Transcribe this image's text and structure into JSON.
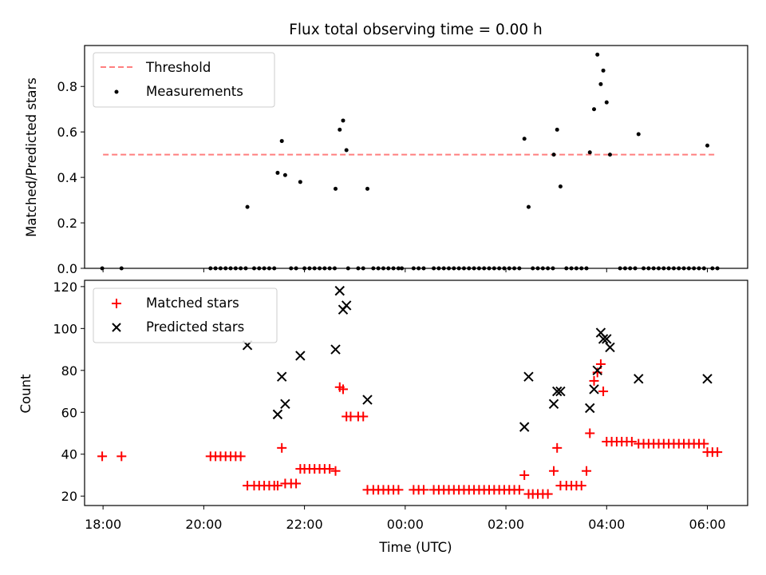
{
  "title": "Flux total observing time = 0.00 h",
  "xlabel": "Time (UTC)",
  "colors": {
    "threshold": "#ff7f7f",
    "measurements": "#000000",
    "matched": "#ff0000",
    "predicted": "#000000"
  },
  "chart_data": [
    {
      "type": "scatter",
      "ylabel": "Matched/Predicted stars",
      "xlim": [
        "17:38",
        "06:48"
      ],
      "ylim": [
        0,
        0.98
      ],
      "yticks": [
        "0.0",
        "0.2",
        "0.4",
        "0.6",
        "0.8"
      ],
      "legend_position": "upper-left",
      "threshold": {
        "name": "Threshold",
        "value": 0.5,
        "x_range": [
          "18:00",
          "06:12"
        ]
      },
      "measurements": {
        "name": "Measurements",
        "points": [
          [
            "17:59",
            0.0
          ],
          [
            "18:22",
            0.0
          ],
          [
            "20:08",
            0.0
          ],
          [
            "20:14",
            0.0
          ],
          [
            "20:20",
            0.0
          ],
          [
            "20:26",
            0.0
          ],
          [
            "20:32",
            0.0
          ],
          [
            "20:38",
            0.0
          ],
          [
            "20:44",
            0.0
          ],
          [
            "20:50",
            0.0
          ],
          [
            "20:52",
            0.27
          ],
          [
            "21:00",
            0.0
          ],
          [
            "21:06",
            0.0
          ],
          [
            "21:12",
            0.0
          ],
          [
            "21:18",
            0.0
          ],
          [
            "21:24",
            0.0
          ],
          [
            "21:28",
            0.42
          ],
          [
            "21:33",
            0.56
          ],
          [
            "21:37",
            0.41
          ],
          [
            "21:44",
            0.0
          ],
          [
            "21:50",
            0.0
          ],
          [
            "21:55",
            0.38
          ],
          [
            "22:00",
            0.0
          ],
          [
            "22:06",
            0.0
          ],
          [
            "22:12",
            0.0
          ],
          [
            "22:18",
            0.0
          ],
          [
            "22:24",
            0.0
          ],
          [
            "22:30",
            0.0
          ],
          [
            "22:36",
            0.0
          ],
          [
            "22:37",
            0.35
          ],
          [
            "22:42",
            0.61
          ],
          [
            "22:46",
            0.65
          ],
          [
            "22:50",
            0.52
          ],
          [
            "22:52",
            0.0
          ],
          [
            "23:04",
            0.0
          ],
          [
            "23:10",
            0.0
          ],
          [
            "23:15",
            0.35
          ],
          [
            "23:22",
            0.0
          ],
          [
            "23:28",
            0.0
          ],
          [
            "23:34",
            0.0
          ],
          [
            "23:40",
            0.0
          ],
          [
            "23:46",
            0.0
          ],
          [
            "23:52",
            0.0
          ],
          [
            "23:56",
            0.0
          ],
          [
            "00:10",
            0.0
          ],
          [
            "00:16",
            0.0
          ],
          [
            "00:22",
            0.0
          ],
          [
            "00:34",
            0.0
          ],
          [
            "00:40",
            0.0
          ],
          [
            "00:46",
            0.0
          ],
          [
            "00:52",
            0.0
          ],
          [
            "00:58",
            0.0
          ],
          [
            "01:04",
            0.0
          ],
          [
            "01:10",
            0.0
          ],
          [
            "01:16",
            0.0
          ],
          [
            "01:22",
            0.0
          ],
          [
            "01:28",
            0.0
          ],
          [
            "01:34",
            0.0
          ],
          [
            "01:40",
            0.0
          ],
          [
            "01:46",
            0.0
          ],
          [
            "01:52",
            0.0
          ],
          [
            "01:58",
            0.0
          ],
          [
            "02:04",
            0.0
          ],
          [
            "02:10",
            0.0
          ],
          [
            "02:16",
            0.0
          ],
          [
            "02:22",
            0.57
          ],
          [
            "02:27",
            0.27
          ],
          [
            "02:32",
            0.0
          ],
          [
            "02:38",
            0.0
          ],
          [
            "02:44",
            0.0
          ],
          [
            "02:50",
            0.0
          ],
          [
            "02:56",
            0.0
          ],
          [
            "02:57",
            0.5
          ],
          [
            "03:01",
            0.61
          ],
          [
            "03:05",
            0.36
          ],
          [
            "03:12",
            0.0
          ],
          [
            "03:18",
            0.0
          ],
          [
            "03:24",
            0.0
          ],
          [
            "03:30",
            0.0
          ],
          [
            "03:36",
            0.0
          ],
          [
            "03:40",
            0.51
          ],
          [
            "03:45",
            0.7
          ],
          [
            "03:49",
            0.94
          ],
          [
            "03:53",
            0.81
          ],
          [
            "03:56",
            0.87
          ],
          [
            "04:00",
            0.73
          ],
          [
            "04:04",
            0.5
          ],
          [
            "04:16",
            0.0
          ],
          [
            "04:22",
            0.0
          ],
          [
            "04:28",
            0.0
          ],
          [
            "04:34",
            0.0
          ],
          [
            "04:38",
            0.59
          ],
          [
            "04:44",
            0.0
          ],
          [
            "04:50",
            0.0
          ],
          [
            "04:56",
            0.0
          ],
          [
            "05:02",
            0.0
          ],
          [
            "05:08",
            0.0
          ],
          [
            "05:14",
            0.0
          ],
          [
            "05:20",
            0.0
          ],
          [
            "05:26",
            0.0
          ],
          [
            "05:32",
            0.0
          ],
          [
            "05:38",
            0.0
          ],
          [
            "05:44",
            0.0
          ],
          [
            "05:50",
            0.0
          ],
          [
            "05:56",
            0.0
          ],
          [
            "06:00",
            0.54
          ],
          [
            "06:06",
            0.0
          ],
          [
            "06:12",
            0.0
          ]
        ]
      }
    },
    {
      "type": "scatter",
      "ylabel": "Count",
      "xlabel": "Time (UTC)",
      "xlim": [
        "17:38",
        "06:48"
      ],
      "ylim": [
        15.5,
        123
      ],
      "yticks": [
        "20",
        "40",
        "60",
        "80",
        "100",
        "120"
      ],
      "xticks": [
        "18:00",
        "20:00",
        "22:00",
        "00:00",
        "02:00",
        "04:00",
        "06:00"
      ],
      "legend_position": "upper-left",
      "series": [
        {
          "name": "Matched stars",
          "marker": "+",
          "points": [
            [
              "17:59",
              39
            ],
            [
              "18:22",
              39
            ],
            [
              "20:08",
              39
            ],
            [
              "20:14",
              39
            ],
            [
              "20:20",
              39
            ],
            [
              "20:26",
              39
            ],
            [
              "20:32",
              39
            ],
            [
              "20:38",
              39
            ],
            [
              "20:44",
              39
            ],
            [
              "20:52",
              25
            ],
            [
              "21:00",
              25
            ],
            [
              "21:06",
              25
            ],
            [
              "21:12",
              25
            ],
            [
              "21:18",
              25
            ],
            [
              "21:24",
              25
            ],
            [
              "21:28",
              25
            ],
            [
              "21:33",
              43
            ],
            [
              "21:37",
              26
            ],
            [
              "21:44",
              26
            ],
            [
              "21:50",
              26
            ],
            [
              "21:55",
              33
            ],
            [
              "22:00",
              33
            ],
            [
              "22:06",
              33
            ],
            [
              "22:12",
              33
            ],
            [
              "22:18",
              33
            ],
            [
              "22:24",
              33
            ],
            [
              "22:30",
              33
            ],
            [
              "22:37",
              32
            ],
            [
              "22:42",
              72
            ],
            [
              "22:46",
              71
            ],
            [
              "22:50",
              58
            ],
            [
              "22:55",
              58
            ],
            [
              "23:04",
              58
            ],
            [
              "23:10",
              58
            ],
            [
              "23:15",
              23
            ],
            [
              "23:22",
              23
            ],
            [
              "23:28",
              23
            ],
            [
              "23:34",
              23
            ],
            [
              "23:40",
              23
            ],
            [
              "23:46",
              23
            ],
            [
              "23:52",
              23
            ],
            [
              "00:10",
              23
            ],
            [
              "00:16",
              23
            ],
            [
              "00:22",
              23
            ],
            [
              "00:34",
              23
            ],
            [
              "00:40",
              23
            ],
            [
              "00:46",
              23
            ],
            [
              "00:52",
              23
            ],
            [
              "00:58",
              23
            ],
            [
              "01:04",
              23
            ],
            [
              "01:10",
              23
            ],
            [
              "01:16",
              23
            ],
            [
              "01:22",
              23
            ],
            [
              "01:28",
              23
            ],
            [
              "01:34",
              23
            ],
            [
              "01:40",
              23
            ],
            [
              "01:46",
              23
            ],
            [
              "01:52",
              23
            ],
            [
              "01:58",
              23
            ],
            [
              "02:04",
              23
            ],
            [
              "02:10",
              23
            ],
            [
              "02:16",
              23
            ],
            [
              "02:22",
              30
            ],
            [
              "02:27",
              21
            ],
            [
              "02:32",
              21
            ],
            [
              "02:38",
              21
            ],
            [
              "02:44",
              21
            ],
            [
              "02:50",
              21
            ],
            [
              "02:57",
              32
            ],
            [
              "03:01",
              43
            ],
            [
              "03:05",
              25
            ],
            [
              "03:12",
              25
            ],
            [
              "03:18",
              25
            ],
            [
              "03:24",
              25
            ],
            [
              "03:30",
              25
            ],
            [
              "03:36",
              32
            ],
            [
              "03:40",
              50
            ],
            [
              "03:45",
              75
            ],
            [
              "03:49",
              79
            ],
            [
              "03:53",
              83
            ],
            [
              "03:56",
              70
            ],
            [
              "04:00",
              46
            ],
            [
              "04:06",
              46
            ],
            [
              "04:12",
              46
            ],
            [
              "04:18",
              46
            ],
            [
              "04:24",
              46
            ],
            [
              "04:30",
              46
            ],
            [
              "04:38",
              45
            ],
            [
              "04:44",
              45
            ],
            [
              "04:50",
              45
            ],
            [
              "04:56",
              45
            ],
            [
              "05:02",
              45
            ],
            [
              "05:08",
              45
            ],
            [
              "05:14",
              45
            ],
            [
              "05:20",
              45
            ],
            [
              "05:26",
              45
            ],
            [
              "05:32",
              45
            ],
            [
              "05:38",
              45
            ],
            [
              "05:44",
              45
            ],
            [
              "05:50",
              45
            ],
            [
              "05:56",
              45
            ],
            [
              "06:00",
              41
            ],
            [
              "06:06",
              41
            ],
            [
              "06:12",
              41
            ]
          ]
        },
        {
          "name": "Predicted stars",
          "marker": "x",
          "points": [
            [
              "20:52",
              92
            ],
            [
              "21:28",
              59
            ],
            [
              "21:33",
              77
            ],
            [
              "21:37",
              64
            ],
            [
              "21:55",
              87
            ],
            [
              "22:37",
              90
            ],
            [
              "22:42",
              118
            ],
            [
              "22:46",
              109
            ],
            [
              "22:50",
              111
            ],
            [
              "23:15",
              66
            ],
            [
              "02:22",
              53
            ],
            [
              "02:27",
              77
            ],
            [
              "02:57",
              64
            ],
            [
              "03:01",
              70
            ],
            [
              "03:05",
              70
            ],
            [
              "03:40",
              62
            ],
            [
              "03:45",
              71
            ],
            [
              "03:49",
              80
            ],
            [
              "03:53",
              98
            ],
            [
              "03:56",
              95
            ],
            [
              "04:00",
              95
            ],
            [
              "04:04",
              91
            ],
            [
              "04:38",
              76
            ],
            [
              "06:00",
              76
            ]
          ]
        }
      ]
    }
  ]
}
